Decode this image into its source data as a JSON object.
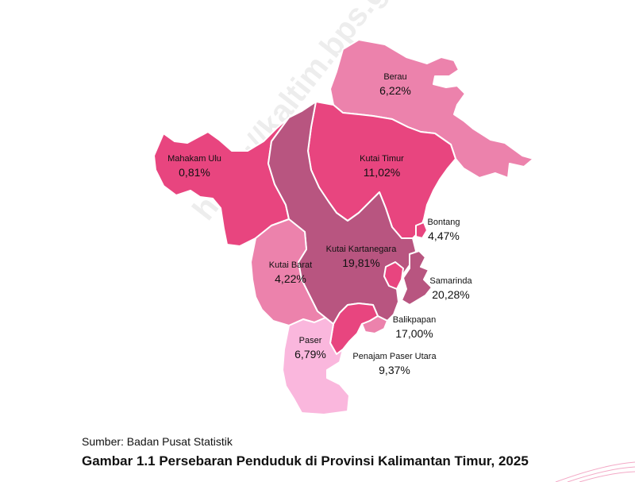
{
  "watermark": "https://kaltim.bps.go",
  "colors": {
    "highest": "#b85580",
    "high": "#e8457f",
    "mid": "#ec82ac",
    "low": "#fab7dd",
    "lowest": "#fbd0ea"
  },
  "regions": [
    {
      "id": "berau",
      "name": "Berau",
      "value": "6,22%",
      "tier": "mid"
    },
    {
      "id": "mahakam-ulu",
      "name": "Mahakam Ulu",
      "value": "0,81%",
      "tier": "high"
    },
    {
      "id": "kutai-timur",
      "name": "Kutai Timur",
      "value": "11,02%",
      "tier": "high"
    },
    {
      "id": "bontang",
      "name": "Bontang",
      "value": "4,47%",
      "tier": "high"
    },
    {
      "id": "kutai-kartanegara",
      "name": "Kutai Kartanegara",
      "value": "19,81%",
      "tier": "highest"
    },
    {
      "id": "kutai-barat",
      "name": "Kutai Barat",
      "value": "4,22%",
      "tier": "mid"
    },
    {
      "id": "samarinda",
      "name": "Samarinda",
      "value": "20,28%",
      "tier": "high"
    },
    {
      "id": "balikpapan",
      "name": "Balikpapan",
      "value": "17,00%",
      "tier": "mid"
    },
    {
      "id": "paser",
      "name": "Paser",
      "value": "6,79%",
      "tier": "low"
    },
    {
      "id": "penajam-paser-utara",
      "name": "Penajam Paser Utara",
      "value": "9,37%",
      "tier": "high"
    }
  ],
  "source": "Sumber: Badan Pusat Statistik",
  "caption": "Gambar 1.1  Persebaran Penduduk di Provinsi Kalimantan Timur, 2025"
}
